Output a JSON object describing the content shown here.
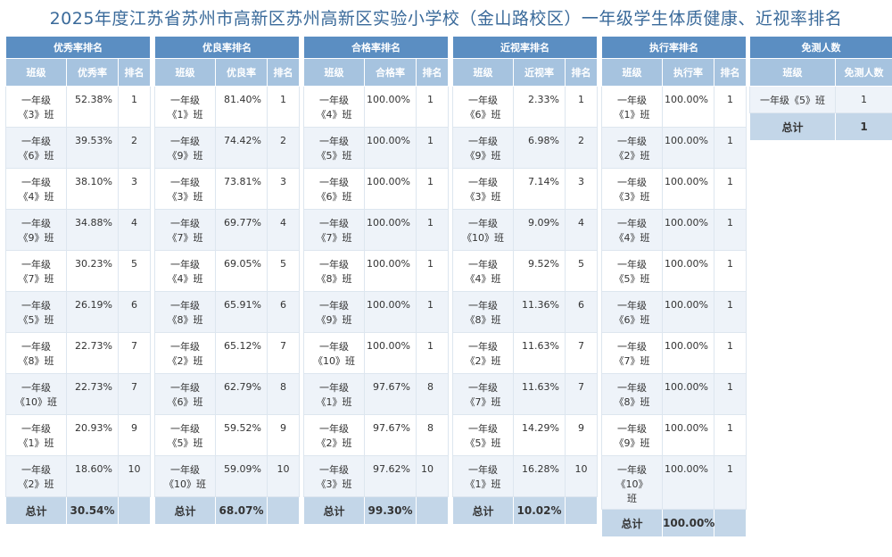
{
  "title": "2025年度江苏省苏州市高新区苏州高新区实验小学校（金山路校区）一年级学生体质健康、近视率排名",
  "panels": [
    {
      "header": "优秀率排名",
      "col_class": "班级",
      "col_value": "优秀率",
      "col_rank": "排名",
      "rows": [
        {
          "line1": "一年级",
          "line2": "《3》班",
          "value": "52.38%",
          "rank": "1"
        },
        {
          "line1": "一年级",
          "line2": "《6》班",
          "value": "39.53%",
          "rank": "2"
        },
        {
          "line1": "一年级",
          "line2": "《4》班",
          "value": "38.10%",
          "rank": "3"
        },
        {
          "line1": "一年级",
          "line2": "《9》班",
          "value": "34.88%",
          "rank": "4"
        },
        {
          "line1": "一年级",
          "line2": "《7》班",
          "value": "30.23%",
          "rank": "5"
        },
        {
          "line1": "一年级",
          "line2": "《5》班",
          "value": "26.19%",
          "rank": "6"
        },
        {
          "line1": "一年级",
          "line2": "《8》班",
          "value": "22.73%",
          "rank": "7"
        },
        {
          "line1": "一年级",
          "line2": "《10》班",
          "value": "22.73%",
          "rank": "7"
        },
        {
          "line1": "一年级",
          "line2": "《1》班",
          "value": "20.93%",
          "rank": "9"
        },
        {
          "line1": "一年级",
          "line2": "《2》班",
          "value": "18.60%",
          "rank": "10"
        }
      ],
      "total_label": "总计",
      "total_value": "30.54%"
    },
    {
      "header": "优良率排名",
      "col_class": "班级",
      "col_value": "优良率",
      "col_rank": "排名",
      "rows": [
        {
          "line1": "一年级",
          "line2": "《1》班",
          "value": "81.40%",
          "rank": "1"
        },
        {
          "line1": "一年级",
          "line2": "《9》班",
          "value": "74.42%",
          "rank": "2"
        },
        {
          "line1": "一年级",
          "line2": "《3》班",
          "value": "73.81%",
          "rank": "3"
        },
        {
          "line1": "一年级",
          "line2": "《7》班",
          "value": "69.77%",
          "rank": "4"
        },
        {
          "line1": "一年级",
          "line2": "《4》班",
          "value": "69.05%",
          "rank": "5"
        },
        {
          "line1": "一年级",
          "line2": "《8》班",
          "value": "65.91%",
          "rank": "6"
        },
        {
          "line1": "一年级",
          "line2": "《2》班",
          "value": "65.12%",
          "rank": "7"
        },
        {
          "line1": "一年级",
          "line2": "《6》班",
          "value": "62.79%",
          "rank": "8"
        },
        {
          "line1": "一年级",
          "line2": "《5》班",
          "value": "59.52%",
          "rank": "9"
        },
        {
          "line1": "一年级",
          "line2": "《10》班",
          "value": "59.09%",
          "rank": "10"
        }
      ],
      "total_label": "总计",
      "total_value": "68.07%"
    },
    {
      "header": "合格率排名",
      "col_class": "班级",
      "col_value": "合格率",
      "col_rank": "排名",
      "rows": [
        {
          "line1": "一年级",
          "line2": "《4》班",
          "value": "100.00%",
          "rank": "1"
        },
        {
          "line1": "一年级",
          "line2": "《5》班",
          "value": "100.00%",
          "rank": "1"
        },
        {
          "line1": "一年级",
          "line2": "《6》班",
          "value": "100.00%",
          "rank": "1"
        },
        {
          "line1": "一年级",
          "line2": "《7》班",
          "value": "100.00%",
          "rank": "1"
        },
        {
          "line1": "一年级",
          "line2": "《8》班",
          "value": "100.00%",
          "rank": "1"
        },
        {
          "line1": "一年级",
          "line2": "《9》班",
          "value": "100.00%",
          "rank": "1"
        },
        {
          "line1": "一年级",
          "line2": "《10》班",
          "value": "100.00%",
          "rank": "1"
        },
        {
          "line1": "一年级",
          "line2": "《1》班",
          "value": "97.67%",
          "rank": "8"
        },
        {
          "line1": "一年级",
          "line2": "《2》班",
          "value": "97.67%",
          "rank": "8"
        },
        {
          "line1": "一年级",
          "line2": "《3》班",
          "value": "97.62%",
          "rank": "10"
        }
      ],
      "total_label": "总计",
      "total_value": "99.30%"
    },
    {
      "header": "近视率排名",
      "col_class": "班级",
      "col_value": "近视率",
      "col_rank": "排名",
      "rows": [
        {
          "line1": "一年级",
          "line2": "《6》班",
          "value": "2.33%",
          "rank": "1"
        },
        {
          "line1": "一年级",
          "line2": "《9》班",
          "value": "6.98%",
          "rank": "2"
        },
        {
          "line1": "一年级",
          "line2": "《3》班",
          "value": "7.14%",
          "rank": "3"
        },
        {
          "line1": "一年级",
          "line2": "《10》班",
          "value": "9.09%",
          "rank": "4"
        },
        {
          "line1": "一年级",
          "line2": "《4》班",
          "value": "9.52%",
          "rank": "5"
        },
        {
          "line1": "一年级",
          "line2": "《8》班",
          "value": "11.36%",
          "rank": "6"
        },
        {
          "line1": "一年级",
          "line2": "《2》班",
          "value": "11.63%",
          "rank": "7"
        },
        {
          "line1": "一年级",
          "line2": "《7》班",
          "value": "11.63%",
          "rank": "7"
        },
        {
          "line1": "一年级",
          "line2": "《5》班",
          "value": "14.29%",
          "rank": "9"
        },
        {
          "line1": "一年级",
          "line2": "《1》班",
          "value": "16.28%",
          "rank": "10"
        }
      ],
      "total_label": "总计",
      "total_value": "10.02%"
    },
    {
      "header": "执行率排名",
      "col_class": "班级",
      "col_value": "执行率",
      "col_rank": "排名",
      "rows": [
        {
          "line1": "一年级",
          "line2": "《1》班",
          "value": "100.00%",
          "rank": "1"
        },
        {
          "line1": "一年级",
          "line2": "《2》班",
          "value": "100.00%",
          "rank": "1"
        },
        {
          "line1": "一年级",
          "line2": "《3》班",
          "value": "100.00%",
          "rank": "1"
        },
        {
          "line1": "一年级",
          "line2": "《4》班",
          "value": "100.00%",
          "rank": "1"
        },
        {
          "line1": "一年级",
          "line2": "《5》班",
          "value": "100.00%",
          "rank": "1"
        },
        {
          "line1": "一年级",
          "line2": "《6》班",
          "value": "100.00%",
          "rank": "1"
        },
        {
          "line1": "一年级",
          "line2": "《7》班",
          "value": "100.00%",
          "rank": "1"
        },
        {
          "line1": "一年级",
          "line2": "《8》班",
          "value": "100.00%",
          "rank": "1"
        },
        {
          "line1": "一年级",
          "line2": "《9》班",
          "value": "100.00%",
          "rank": "1"
        },
        {
          "line1": "一年级",
          "line2": "《10》",
          "line3": "班",
          "value": "100.00%",
          "rank": "1"
        }
      ],
      "total_label": "总计",
      "total_value": "100.00%"
    }
  ],
  "exempt": {
    "header": "免测人数",
    "col_class": "班级",
    "col_count": "免测人数",
    "rows": [
      {
        "label": "一年级《5》班",
        "count": "1"
      }
    ],
    "total_label": "总计",
    "total_value": "1"
  },
  "colors": {
    "title": "#3a6a9a",
    "panel_header": "#5b8ec2",
    "column_header": "#a6c3df",
    "row_alt": "#eef3f9",
    "total_row": "#c3d6e8"
  }
}
